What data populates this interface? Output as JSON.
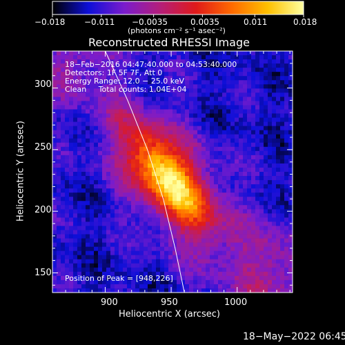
{
  "colorbar": {
    "ticks": [
      "−0.018",
      "−0.011",
      "−0.0035",
      "0.0035",
      "0.011",
      "0.018"
    ],
    "units": "(photons cm⁻² s⁻¹ asec⁻²)",
    "range": [
      -0.018,
      0.018
    ],
    "colormap": [
      "#000000",
      "#0d0fd8",
      "#7a1ccc",
      "#b41e7a",
      "#e01a1a",
      "#ff6a00",
      "#ffc000",
      "#ffffa0"
    ]
  },
  "annotations": {
    "time_range": "18−Feb−2016 04:47:40.000 to 04:53:40.000",
    "detectors": "Detectors: 1F 5F 7F, Att 0",
    "energy_range": "Energy Range: 12.0 − 25.0 keV",
    "method_counts": "Clean     Total counts: 1.04E+04",
    "peak_position": "Position of Peak = [948,226]"
  },
  "footer_timestamp": "18−May−2022 06:45",
  "chart_data": {
    "type": "heatmap",
    "title": "Reconstructed RHESSI Image",
    "xlabel": "Heliocentric X (arcsec)",
    "ylabel": "Heliocentric Y (arcsec)",
    "xlim": [
      860,
      1042
    ],
    "ylim": [
      134,
      330
    ],
    "x_ticks": [
      900,
      950,
      1000
    ],
    "y_ticks": [
      150,
      200,
      250,
      300
    ],
    "peak": {
      "x": 948,
      "y": 226,
      "value": 0.018
    },
    "source_extent_arcsec": {
      "major": 100,
      "minor": 40,
      "orientation": "NW–SE"
    },
    "limb_curve": [
      {
        "x": 900,
        "y": 330
      },
      {
        "x": 917,
        "y": 290
      },
      {
        "x": 932,
        "y": 250
      },
      {
        "x": 944,
        "y": 210
      },
      {
        "x": 953,
        "y": 170
      },
      {
        "x": 960,
        "y": 134
      }
    ]
  }
}
